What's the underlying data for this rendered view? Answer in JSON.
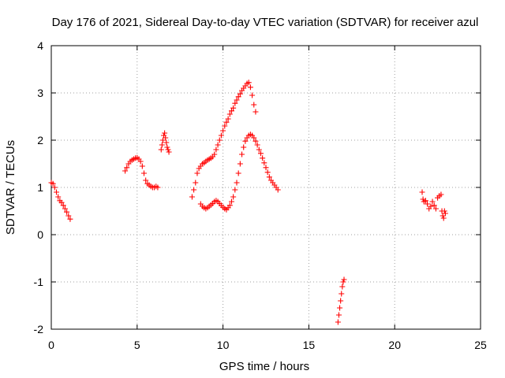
{
  "chart_data": {
    "type": "scatter",
    "title": "Day 176 of 2021, Sidereal Day-to-day VTEC variation (SDTVAR) for receiver azul",
    "xlabel": "GPS time / hours",
    "ylabel": "SDTVAR / TECUs",
    "xlim": [
      0,
      25
    ],
    "ylim": [
      -2,
      4
    ],
    "xticks": [
      "0",
      "5",
      "10",
      "15",
      "20",
      "25"
    ],
    "yticks": [
      "-2",
      "-1",
      "0",
      "1",
      "2",
      "3",
      "4"
    ],
    "grid": true,
    "marker": "+",
    "series": [
      {
        "name": "SDTVAR",
        "color": "#ff0000",
        "segments": [
          [
            [
              0.0,
              1.1
            ],
            [
              0.1,
              1.08
            ],
            [
              0.2,
              1.0
            ],
            [
              0.3,
              0.9
            ],
            [
              0.4,
              0.8
            ],
            [
              0.5,
              0.72
            ],
            [
              0.6,
              0.68
            ],
            [
              0.7,
              0.62
            ],
            [
              0.8,
              0.55
            ],
            [
              0.9,
              0.48
            ],
            [
              1.0,
              0.4
            ],
            [
              1.1,
              0.33
            ]
          ],
          [
            [
              4.3,
              1.35
            ],
            [
              4.4,
              1.42
            ],
            [
              4.5,
              1.5
            ],
            [
              4.6,
              1.55
            ],
            [
              4.7,
              1.58
            ],
            [
              4.8,
              1.6
            ],
            [
              4.9,
              1.62
            ],
            [
              5.0,
              1.63
            ],
            [
              5.1,
              1.6
            ],
            [
              5.2,
              1.55
            ],
            [
              5.3,
              1.45
            ],
            [
              5.4,
              1.3
            ],
            [
              5.5,
              1.15
            ],
            [
              5.6,
              1.08
            ],
            [
              5.7,
              1.05
            ],
            [
              5.8,
              1.02
            ],
            [
              5.9,
              1.0
            ],
            [
              6.0,
              1.0
            ],
            [
              6.1,
              1.02
            ],
            [
              6.2,
              1.0
            ]
          ],
          [
            [
              6.4,
              1.8
            ],
            [
              6.45,
              1.9
            ],
            [
              6.5,
              2.0
            ],
            [
              6.55,
              2.1
            ],
            [
              6.6,
              2.15
            ],
            [
              6.65,
              2.05
            ],
            [
              6.7,
              1.95
            ],
            [
              6.75,
              1.85
            ],
            [
              6.8,
              1.8
            ],
            [
              6.85,
              1.75
            ]
          ],
          [
            [
              8.2,
              0.8
            ],
            [
              8.3,
              0.95
            ],
            [
              8.4,
              1.1
            ],
            [
              8.5,
              1.3
            ],
            [
              8.6,
              1.4
            ],
            [
              8.7,
              1.45
            ],
            [
              8.8,
              1.5
            ],
            [
              8.9,
              1.52
            ],
            [
              9.0,
              1.55
            ],
            [
              9.1,
              1.58
            ],
            [
              9.2,
              1.6
            ],
            [
              9.3,
              1.62
            ],
            [
              9.4,
              1.65
            ],
            [
              9.5,
              1.7
            ],
            [
              9.6,
              1.8
            ],
            [
              9.7,
              1.9
            ],
            [
              9.8,
              2.0
            ],
            [
              9.9,
              2.1
            ],
            [
              10.0,
              2.2
            ],
            [
              10.1,
              2.3
            ],
            [
              10.2,
              2.38
            ],
            [
              10.3,
              2.45
            ],
            [
              10.4,
              2.55
            ],
            [
              10.5,
              2.62
            ],
            [
              10.6,
              2.68
            ],
            [
              10.7,
              2.78
            ],
            [
              10.8,
              2.85
            ],
            [
              10.9,
              2.92
            ],
            [
              11.0,
              2.98
            ],
            [
              11.1,
              3.05
            ],
            [
              11.2,
              3.1
            ],
            [
              11.3,
              3.15
            ],
            [
              11.4,
              3.2
            ],
            [
              11.5,
              3.22
            ],
            [
              11.6,
              3.12
            ],
            [
              11.7,
              2.95
            ],
            [
              11.8,
              2.75
            ],
            [
              11.9,
              2.6
            ]
          ],
          [
            [
              8.7,
              0.65
            ],
            [
              8.8,
              0.6
            ],
            [
              8.9,
              0.57
            ],
            [
              9.0,
              0.55
            ],
            [
              9.1,
              0.57
            ],
            [
              9.2,
              0.6
            ],
            [
              9.3,
              0.63
            ],
            [
              9.4,
              0.66
            ],
            [
              9.5,
              0.7
            ],
            [
              9.6,
              0.72
            ],
            [
              9.7,
              0.7
            ],
            [
              9.8,
              0.66
            ],
            [
              9.9,
              0.62
            ],
            [
              10.0,
              0.58
            ],
            [
              10.1,
              0.55
            ],
            [
              10.2,
              0.53
            ],
            [
              10.3,
              0.57
            ],
            [
              10.4,
              0.62
            ],
            [
              10.5,
              0.7
            ],
            [
              10.6,
              0.8
            ],
            [
              10.7,
              0.95
            ],
            [
              10.8,
              1.1
            ],
            [
              10.9,
              1.3
            ],
            [
              11.0,
              1.5
            ],
            [
              11.1,
              1.7
            ],
            [
              11.2,
              1.85
            ],
            [
              11.3,
              1.98
            ],
            [
              11.4,
              2.05
            ],
            [
              11.5,
              2.1
            ],
            [
              11.6,
              2.12
            ],
            [
              11.7,
              2.1
            ],
            [
              11.8,
              2.05
            ],
            [
              11.9,
              1.98
            ],
            [
              12.0,
              1.9
            ],
            [
              12.1,
              1.8
            ],
            [
              12.2,
              1.72
            ],
            [
              12.3,
              1.62
            ],
            [
              12.4,
              1.52
            ],
            [
              12.5,
              1.42
            ],
            [
              12.6,
              1.32
            ],
            [
              12.7,
              1.22
            ],
            [
              12.8,
              1.15
            ],
            [
              12.9,
              1.1
            ],
            [
              13.0,
              1.05
            ],
            [
              13.1,
              1.0
            ],
            [
              13.2,
              0.95
            ]
          ],
          [
            [
              16.7,
              -1.85
            ],
            [
              16.75,
              -1.7
            ],
            [
              16.8,
              -1.55
            ],
            [
              16.85,
              -1.4
            ],
            [
              16.9,
              -1.25
            ],
            [
              16.95,
              -1.1
            ],
            [
              17.0,
              -1.0
            ],
            [
              17.05,
              -0.95
            ]
          ],
          [
            [
              21.6,
              0.9
            ],
            [
              21.65,
              0.75
            ],
            [
              21.7,
              0.7
            ],
            [
              21.8,
              0.72
            ],
            [
              21.9,
              0.65
            ],
            [
              22.0,
              0.55
            ],
            [
              22.1,
              0.6
            ],
            [
              22.2,
              0.7
            ],
            [
              22.3,
              0.62
            ],
            [
              22.4,
              0.55
            ],
            [
              22.5,
              0.78
            ],
            [
              22.6,
              0.82
            ],
            [
              22.7,
              0.85
            ],
            [
              22.75,
              0.5
            ],
            [
              22.8,
              0.4
            ],
            [
              22.85,
              0.35
            ],
            [
              22.9,
              0.5
            ],
            [
              22.95,
              0.45
            ]
          ]
        ]
      }
    ]
  }
}
